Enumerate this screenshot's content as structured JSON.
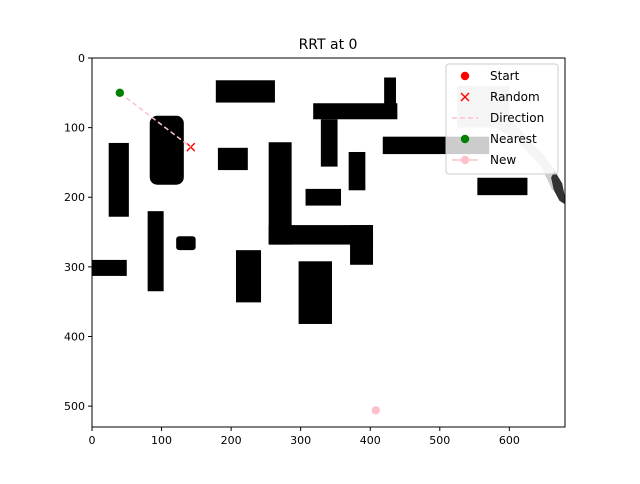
{
  "chart_data": {
    "type": "scatter",
    "title": "RRT at 0",
    "xlabel": "",
    "ylabel": "",
    "xlim": [
      0,
      680
    ],
    "ylim": [
      530,
      0
    ],
    "y_inverted": true,
    "grid": false,
    "x_ticks": [
      0,
      100,
      200,
      300,
      400,
      500,
      600
    ],
    "y_ticks": [
      0,
      100,
      200,
      300,
      400,
      500
    ],
    "legend_position": "top-right",
    "obstacles": [
      {
        "x0": 178,
        "y0": 32,
        "x1": 263,
        "y1": 64
      },
      {
        "x0": 420,
        "y0": 28,
        "x1": 437,
        "y1": 68
      },
      {
        "x0": 318,
        "y0": 65,
        "x1": 439,
        "y1": 88
      },
      {
        "x0": 329,
        "y0": 88,
        "x1": 353,
        "y1": 156
      },
      {
        "x0": 83,
        "y0": 83,
        "x1": 132,
        "y1": 182,
        "rounded": true
      },
      {
        "x0": 24,
        "y0": 122,
        "x1": 53,
        "y1": 228
      },
      {
        "x0": 181,
        "y0": 129,
        "x1": 224,
        "y1": 161
      },
      {
        "x0": 254,
        "y0": 121,
        "x1": 287,
        "y1": 268
      },
      {
        "x0": 254,
        "y0": 240,
        "x1": 404,
        "y1": 268
      },
      {
        "x0": 371,
        "y0": 240,
        "x1": 404,
        "y1": 297
      },
      {
        "x0": 369,
        "y0": 135,
        "x1": 393,
        "y1": 190
      },
      {
        "x0": 307,
        "y0": 188,
        "x1": 358,
        "y1": 212
      },
      {
        "x0": 418,
        "y0": 113,
        "x1": 571,
        "y1": 138
      },
      {
        "x0": 554,
        "y0": 172,
        "x1": 626,
        "y1": 197
      },
      {
        "x0": 80,
        "y0": 220,
        "x1": 103,
        "y1": 335
      },
      {
        "x0": 0,
        "y0": 290,
        "x1": 50,
        "y1": 313
      },
      {
        "x0": 121,
        "y0": 256,
        "x1": 149,
        "y1": 276,
        "rounded": true
      },
      {
        "x0": 207,
        "y0": 276,
        "x1": 243,
        "y1": 351
      },
      {
        "x0": 297,
        "y0": 292,
        "x1": 345,
        "y1": 382
      }
    ],
    "region_gray": [
      [
        525,
        40
      ],
      [
        600,
        40
      ],
      [
        600,
        85
      ],
      [
        635,
        125
      ],
      [
        650,
        140
      ],
      [
        665,
        160
      ],
      [
        676,
        185
      ],
      [
        662,
        190
      ],
      [
        645,
        155
      ],
      [
        610,
        118
      ],
      [
        580,
        100
      ],
      [
        525,
        100
      ]
    ],
    "region_dark": [
      [
        665,
        162
      ],
      [
        676,
        180
      ],
      [
        680,
        200
      ],
      [
        680,
        210
      ],
      [
        672,
        205
      ],
      [
        664,
        190
      ],
      [
        660,
        172
      ]
    ],
    "series": [
      {
        "name": "Start",
        "marker": "circle",
        "color": "#ff0000",
        "points": []
      },
      {
        "name": "Random",
        "marker": "x",
        "color": "#ff0000",
        "points": [
          [
            142,
            128
          ]
        ]
      },
      {
        "name": "Direction",
        "marker": "dashed-line",
        "color": "#ffc0cb",
        "points": [
          [
            40,
            50
          ],
          [
            142,
            128
          ]
        ]
      },
      {
        "name": "Nearest",
        "marker": "circle",
        "color": "#008000",
        "points": [
          [
            40,
            50
          ]
        ]
      },
      {
        "name": "New",
        "marker": "circle-line",
        "color": "#ffc0cb",
        "points": [
          [
            408,
            506
          ]
        ]
      }
    ]
  }
}
